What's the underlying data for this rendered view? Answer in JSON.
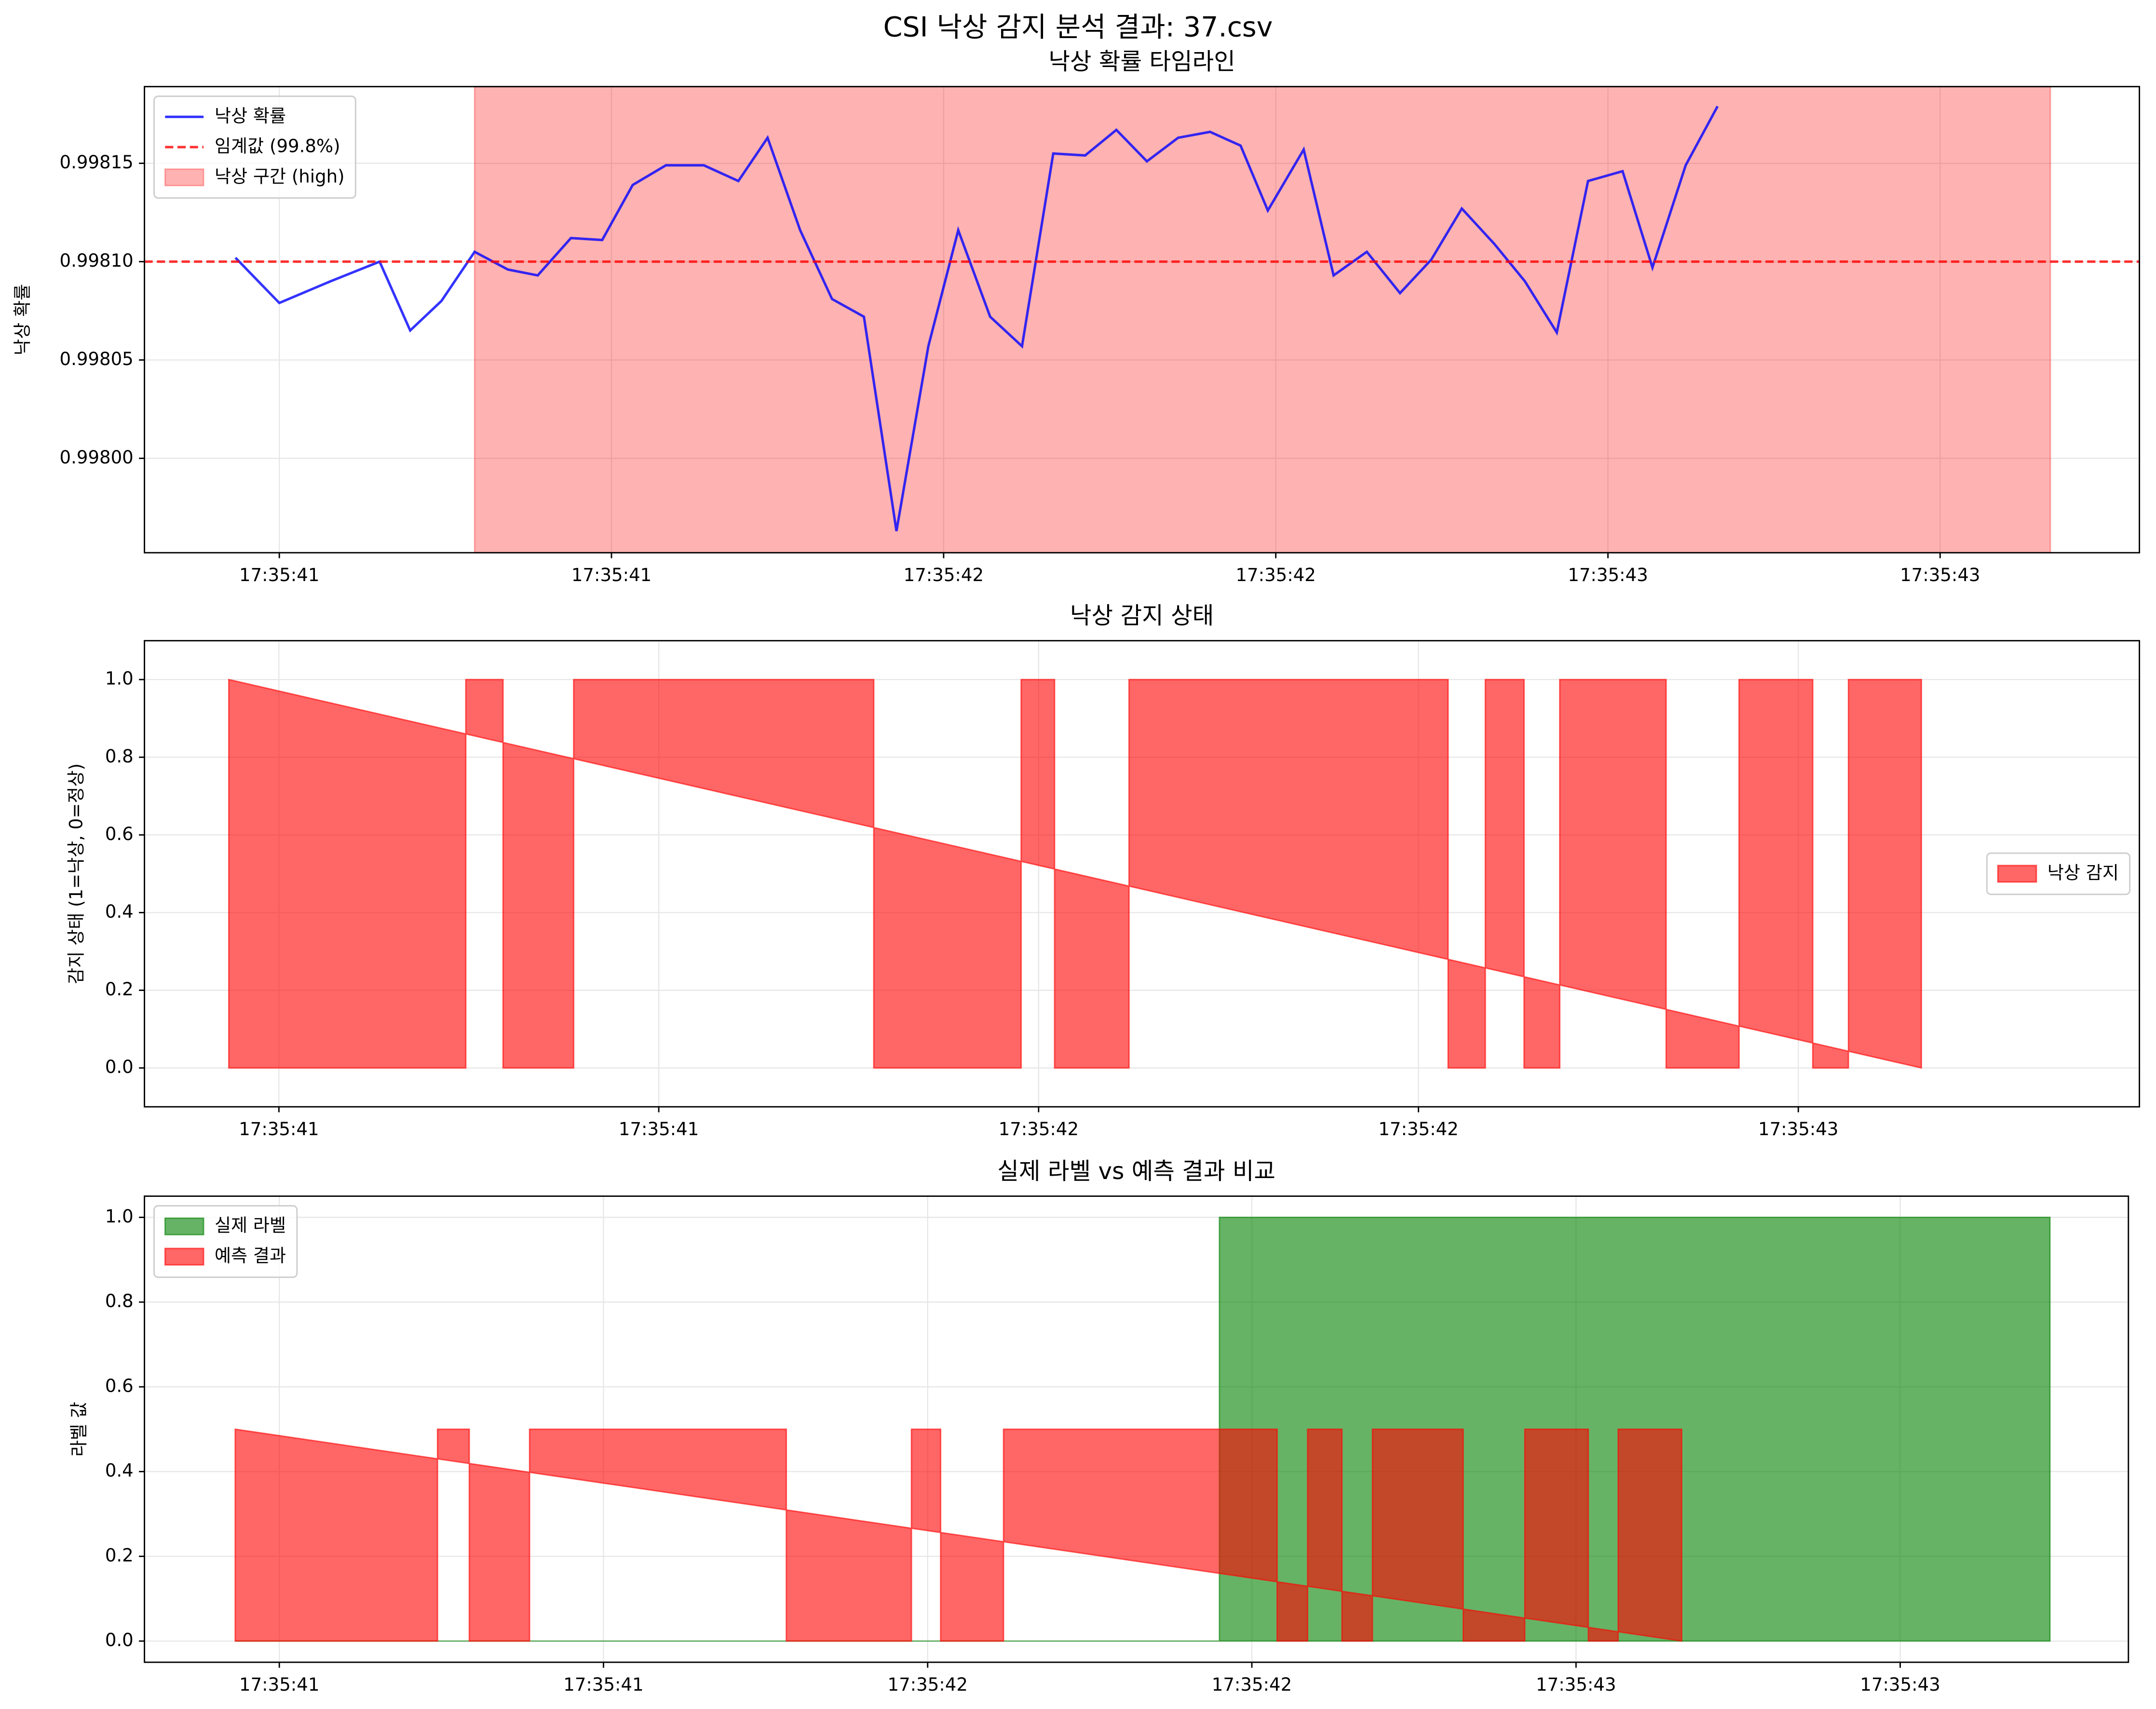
{
  "title": "CSI 낙상 감지 분석 결과: 37.csv",
  "chart_data": [
    {
      "type": "line",
      "title": "낙상 확률 타임라인",
      "y_label": "낙상 확률",
      "x": [
        40.934,
        41.0,
        41.077,
        41.151,
        41.197,
        41.244,
        41.294,
        41.344,
        41.389,
        41.439,
        41.486,
        41.532,
        41.582,
        41.639,
        41.691,
        41.735,
        41.784,
        41.832,
        41.88,
        41.929,
        41.977,
        42.022,
        42.07,
        42.118,
        42.165,
        42.213,
        42.26,
        42.306,
        42.353,
        42.401,
        42.447,
        42.488,
        42.542,
        42.587,
        42.637,
        42.687,
        42.734,
        42.78,
        42.829,
        42.875,
        42.923,
        42.97,
        43.022,
        43.067,
        43.117,
        43.165
      ],
      "series": [
        {
          "name": "낙상 확률",
          "color": "#0000ff",
          "alpha": 0.8,
          "values": [
            0.998102,
            0.998079,
            0.99809,
            0.9981,
            0.998065,
            0.99808,
            0.998105,
            0.998096,
            0.998093,
            0.998112,
            0.998111,
            0.998139,
            0.998149,
            0.998149,
            0.998141,
            0.998163,
            0.998116,
            0.998081,
            0.998072,
            0.997963,
            0.998057,
            0.998116,
            0.998072,
            0.998057,
            0.998155,
            0.998154,
            0.998167,
            0.998151,
            0.998163,
            0.998166,
            0.998159,
            0.998126,
            0.998157,
            0.998093,
            0.998105,
            0.998084,
            0.998101,
            0.998127,
            0.998109,
            0.99809,
            0.998064,
            0.998141,
            0.998146,
            0.998097,
            0.998149,
            0.998179
          ]
        }
      ],
      "threshold": {
        "name": "임계값 (99.8%)",
        "value": 0.9981,
        "color": "#ff0000",
        "alpha": 0.8
      },
      "span": {
        "name": "낙상 구간 (high)",
        "range": [
          41.294,
          43.666
        ],
        "color": "#ff0000",
        "alpha": 0.3
      },
      "xlim": [
        40.797,
        43.8
      ],
      "xticks": [
        {
          "value": 41.0,
          "label": "17:35:41"
        },
        {
          "value": 41.5,
          "label": "17:35:41"
        },
        {
          "value": 42.0,
          "label": "17:35:42"
        },
        {
          "value": 42.5,
          "label": "17:35:42"
        },
        {
          "value": 43.0,
          "label": "17:35:43"
        },
        {
          "value": 43.5,
          "label": "17:35:43"
        }
      ],
      "ylim": [
        0.997952,
        0.998189
      ],
      "yticks": [
        {
          "value": 0.998,
          "label": "0.99800"
        },
        {
          "value": 0.99805,
          "label": "0.99805"
        },
        {
          "value": 0.9981,
          "label": "0.99810"
        },
        {
          "value": 0.99815,
          "label": "0.99815"
        }
      ],
      "grid": true,
      "legend": "upper left"
    },
    {
      "type": "area",
      "title": "낙상 감지 상태",
      "y_label": "감지 상태 (1=낙상, 0=정상)",
      "series": [
        {
          "name": "낙상 감지",
          "color": "#ff0000",
          "alpha": 0.6,
          "x": [
            40.934,
            40.934,
            41.246,
            41.246,
            41.295,
            41.295,
            41.388,
            41.388,
            41.783,
            41.783,
            41.977,
            41.977,
            42.021,
            42.021,
            42.119,
            42.119,
            42.539,
            42.539,
            42.588,
            42.588,
            42.639,
            42.639,
            42.686,
            42.686,
            42.826,
            42.826,
            42.922,
            42.922,
            43.019,
            43.019,
            43.066,
            43.066,
            43.162,
            43.162
          ],
          "values": [
            1,
            0,
            0,
            1,
            1,
            0,
            0,
            1,
            1,
            0,
            0,
            1,
            1,
            0,
            0,
            1,
            1,
            0,
            0,
            1,
            1,
            0,
            0,
            1,
            1,
            0,
            0,
            1,
            1,
            0,
            0,
            1,
            1,
            0
          ]
        }
      ],
      "xlim": [
        40.823,
        43.449
      ],
      "xticks": [
        {
          "value": 41.0,
          "label": "17:35:41"
        },
        {
          "value": 41.5,
          "label": "17:35:41"
        },
        {
          "value": 42.0,
          "label": "17:35:42"
        },
        {
          "value": 42.5,
          "label": "17:35:42"
        },
        {
          "value": 43.0,
          "label": "17:35:43"
        }
      ],
      "ylim": [
        -0.1,
        1.1
      ],
      "yticks": [
        {
          "value": 0,
          "label": "0.0"
        },
        0.2,
        0.4,
        0.6,
        0.8,
        {
          "value": 1,
          "label": "1.0"
        }
      ],
      "grid": true,
      "legend": "center right"
    },
    {
      "type": "area",
      "title": "실제 라벨 vs 예측 결과 비교",
      "y_label": "라벨 값",
      "series": [
        {
          "name": "실제 라벨",
          "color": "#008000",
          "alpha": 0.6,
          "x": [
            40.932,
            42.45,
            42.45,
            43.731,
            43.731
          ],
          "values": [
            0,
            0,
            1,
            1,
            0
          ]
        },
        {
          "name": "예측 결과",
          "color": "#ff0000",
          "alpha": 0.6,
          "x": [
            40.932,
            40.932,
            41.244,
            41.244,
            41.293,
            41.293,
            41.386,
            41.386,
            41.782,
            41.782,
            41.975,
            41.975,
            42.02,
            42.02,
            42.117,
            42.117,
            42.539,
            42.539,
            42.586,
            42.586,
            42.639,
            42.639,
            42.686,
            42.686,
            42.826,
            42.826,
            42.921,
            42.921,
            43.019,
            43.019,
            43.065,
            43.065,
            43.163,
            43.163
          ],
          "values": [
            0.5,
            0,
            0,
            0.5,
            0.5,
            0,
            0,
            0.5,
            0.5,
            0,
            0,
            0.5,
            0.5,
            0,
            0,
            0.5,
            0.5,
            0,
            0,
            0.5,
            0.5,
            0,
            0,
            0.5,
            0.5,
            0,
            0,
            0.5,
            0.5,
            0,
            0,
            0.5,
            0.5,
            0
          ]
        }
      ],
      "xlim": [
        40.792,
        43.852
      ],
      "xticks": [
        {
          "value": 41.0,
          "label": "17:35:41"
        },
        {
          "value": 41.5,
          "label": "17:35:41"
        },
        {
          "value": 42.0,
          "label": "17:35:42"
        },
        {
          "value": 42.5,
          "label": "17:35:42"
        },
        {
          "value": 43.0,
          "label": "17:35:43"
        },
        {
          "value": 43.5,
          "label": "17:35:43"
        }
      ],
      "ylim": [
        -0.05,
        1.05
      ],
      "yticks": [
        {
          "value": 0,
          "label": "0.0"
        },
        0.2,
        0.4,
        0.6,
        0.8,
        {
          "value": 1,
          "label": "1.0"
        }
      ],
      "grid": true,
      "legend": "upper left"
    }
  ]
}
